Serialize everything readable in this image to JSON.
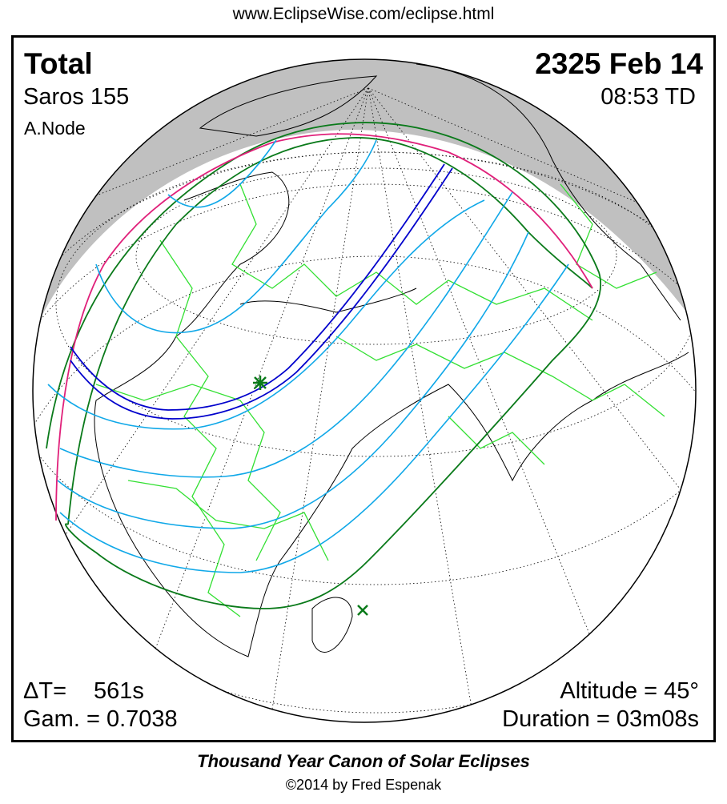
{
  "header": {
    "url": "www.EclipseWise.com/eclipse.html"
  },
  "eclipse": {
    "type": "Total",
    "date": "2325 Feb 14",
    "saros": "Saros 155",
    "time": "08:53 TD",
    "node": "A.Node",
    "delta_t_label": "ΔT=",
    "delta_t": "561s",
    "gamma": "Gam. = 0.7038",
    "altitude": "Altitude = 45°",
    "duration": "Duration = 03m08s"
  },
  "footer": {
    "title": "Thousand Year Canon of Solar Eclipses",
    "copyright": "©2014 by Fred Espenak"
  },
  "colors": {
    "night": "#c0c0c0",
    "borders": "#33e033",
    "coast": "#000000",
    "limit": "#e0207a",
    "penumbra": "#0a7a1a",
    "central_path": "#0000cc",
    "partial_lines": "#10a8e8",
    "greatest_eclipse_marker": "#0a7a1a"
  },
  "markers": {
    "greatest_eclipse": "star-icon",
    "subsolar_point": "x-icon"
  }
}
